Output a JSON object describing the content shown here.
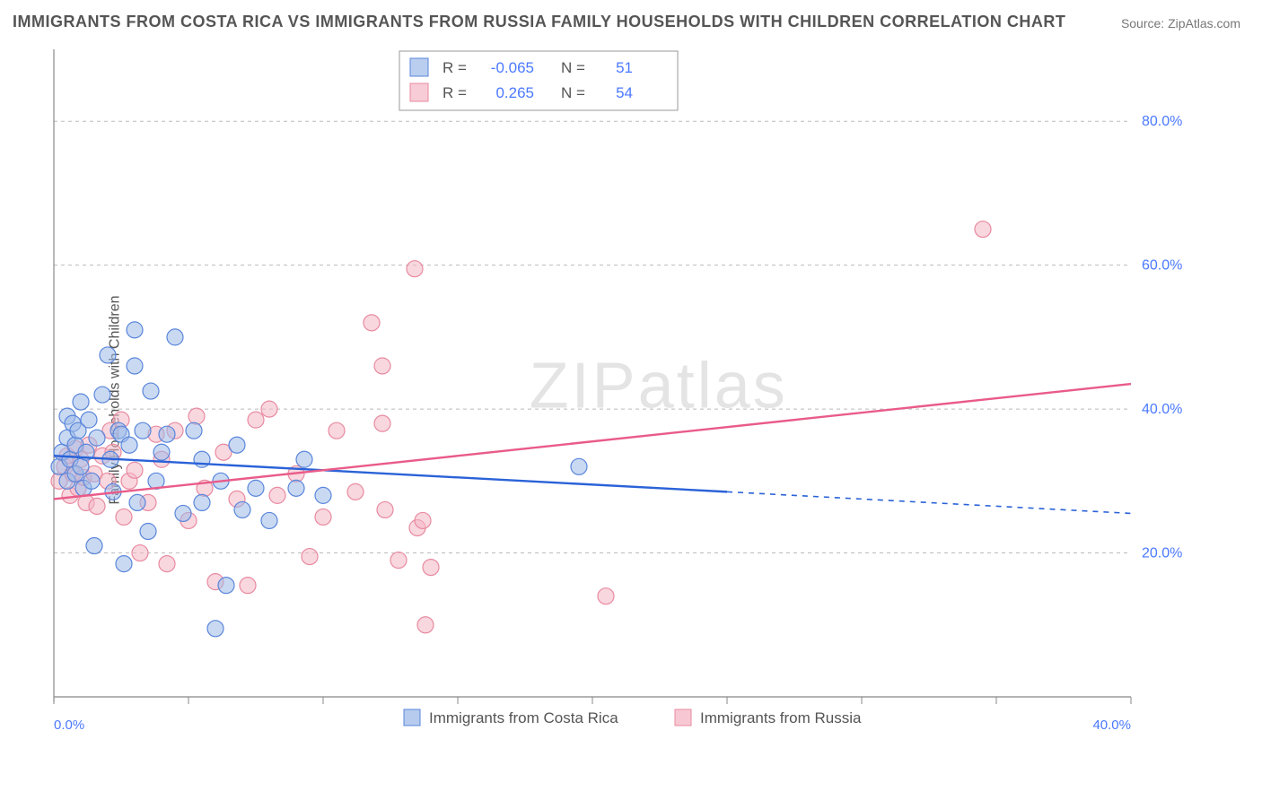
{
  "title": "IMMIGRANTS FROM COSTA RICA VS IMMIGRANTS FROM RUSSIA FAMILY HOUSEHOLDS WITH CHILDREN CORRELATION CHART",
  "source_label": "Source:",
  "source_value": "ZipAtlas.com",
  "ylabel": "Family Households with Children",
  "watermark": "ZIPatlas",
  "colors": {
    "title": "#555555",
    "source": "#777777",
    "tick_label": "#4b79ff",
    "axis": "#888888",
    "grid": "#bbbbbb",
    "series_a_fill": "#9db9e8",
    "series_a_stroke": "#5a86db",
    "series_a_line": "#2a62d8",
    "series_b_fill": "#f4b6c4",
    "series_b_stroke": "#e88aa0",
    "series_b_line": "#e95b89",
    "legend_border": "#999999",
    "legend_bg": "#ffffff"
  },
  "chart": {
    "type": "scatter",
    "xlim": [
      0,
      40
    ],
    "ylim": [
      0,
      90
    ],
    "x_ticks": [
      0,
      5,
      10,
      15,
      20,
      25,
      30,
      35,
      40
    ],
    "x_tick_labels": [
      "0.0%",
      "",
      "",
      "",
      "",
      "",
      "",
      "",
      "40.0%"
    ],
    "y_ticks": [
      20,
      40,
      60,
      80
    ],
    "y_tick_labels": [
      "20.0%",
      "40.0%",
      "60.0%",
      "80.0%"
    ],
    "marker_radius": 9,
    "marker_opacity": 0.55,
    "line_width": 2.4
  },
  "legend_stats": {
    "rows": [
      {
        "swatch": "a",
        "r_label": "R =",
        "r_value": "-0.065",
        "n_label": "N =",
        "n_value": "51"
      },
      {
        "swatch": "b",
        "r_label": "R =",
        "r_value": "0.265",
        "n_label": "N =",
        "n_value": "54"
      }
    ]
  },
  "bottom_legend": {
    "items": [
      {
        "swatch": "a",
        "label": "Immigrants from Costa Rica"
      },
      {
        "swatch": "b",
        "label": "Immigrants from Russia"
      }
    ]
  },
  "series_a": {
    "name": "Immigrants from Costa Rica",
    "regression": {
      "x1": 0,
      "y1": 33.5,
      "x2": 25,
      "y2": 28.5,
      "extrap_x2": 40,
      "extrap_y2": 25.5
    },
    "points": [
      [
        0.2,
        32
      ],
      [
        0.3,
        34
      ],
      [
        0.5,
        39
      ],
      [
        0.5,
        30
      ],
      [
        0.5,
        36
      ],
      [
        0.6,
        33
      ],
      [
        0.7,
        38
      ],
      [
        0.8,
        35
      ],
      [
        0.8,
        31
      ],
      [
        0.9,
        37
      ],
      [
        1.0,
        32
      ],
      [
        1.0,
        41
      ],
      [
        1.1,
        29
      ],
      [
        1.2,
        34
      ],
      [
        1.3,
        38.5
      ],
      [
        1.4,
        30
      ],
      [
        1.5,
        21
      ],
      [
        1.6,
        36
      ],
      [
        1.8,
        42
      ],
      [
        2.0,
        47.5
      ],
      [
        2.1,
        33
      ],
      [
        2.2,
        28.5
      ],
      [
        2.4,
        37
      ],
      [
        2.5,
        36.5
      ],
      [
        2.6,
        18.5
      ],
      [
        2.8,
        35
      ],
      [
        3.0,
        51
      ],
      [
        3.0,
        46
      ],
      [
        3.1,
        27
      ],
      [
        3.3,
        37
      ],
      [
        3.5,
        23
      ],
      [
        3.6,
        42.5
      ],
      [
        3.8,
        30
      ],
      [
        4.0,
        34
      ],
      [
        4.2,
        36.5
      ],
      [
        4.5,
        50
      ],
      [
        4.8,
        25.5
      ],
      [
        5.2,
        37
      ],
      [
        5.5,
        27
      ],
      [
        5.5,
        33
      ],
      [
        6.0,
        9.5
      ],
      [
        6.2,
        30
      ],
      [
        6.4,
        15.5
      ],
      [
        6.8,
        35
      ],
      [
        7.0,
        26
      ],
      [
        7.5,
        29
      ],
      [
        8.0,
        24.5
      ],
      [
        9.0,
        29
      ],
      [
        9.3,
        33
      ],
      [
        10.0,
        28
      ],
      [
        19.5,
        32
      ]
    ]
  },
  "series_b": {
    "name": "Immigrants from Russia",
    "regression": {
      "x1": 0,
      "y1": 27.5,
      "x2": 40,
      "y2": 43.5
    },
    "points": [
      [
        0.2,
        30
      ],
      [
        0.4,
        32
      ],
      [
        0.5,
        33.5
      ],
      [
        0.6,
        28
      ],
      [
        0.7,
        31
      ],
      [
        0.8,
        34.5
      ],
      [
        0.9,
        29
      ],
      [
        1.0,
        33
      ],
      [
        1.1,
        30.5
      ],
      [
        1.2,
        27
      ],
      [
        1.3,
        35
      ],
      [
        1.5,
        31
      ],
      [
        1.6,
        26.5
      ],
      [
        1.8,
        33.5
      ],
      [
        2.0,
        30
      ],
      [
        2.1,
        37
      ],
      [
        2.2,
        34
      ],
      [
        2.5,
        38.5
      ],
      [
        2.6,
        25
      ],
      [
        2.8,
        30
      ],
      [
        3.0,
        31.5
      ],
      [
        3.2,
        20
      ],
      [
        3.5,
        27
      ],
      [
        3.8,
        36.5
      ],
      [
        4.0,
        33
      ],
      [
        4.2,
        18.5
      ],
      [
        4.5,
        37
      ],
      [
        5.0,
        24.5
      ],
      [
        5.3,
        39
      ],
      [
        5.6,
        29
      ],
      [
        6.0,
        16
      ],
      [
        6.3,
        34
      ],
      [
        6.8,
        27.5
      ],
      [
        7.2,
        15.5
      ],
      [
        7.5,
        38.5
      ],
      [
        8.0,
        40
      ],
      [
        8.3,
        28
      ],
      [
        9.0,
        31
      ],
      [
        9.5,
        19.5
      ],
      [
        10.0,
        25
      ],
      [
        10.5,
        37
      ],
      [
        11.2,
        28.5
      ],
      [
        11.8,
        52
      ],
      [
        12.2,
        38
      ],
      [
        12.2,
        46
      ],
      [
        12.3,
        26
      ],
      [
        12.8,
        19
      ],
      [
        13.4,
        59.5
      ],
      [
        13.5,
        23.5
      ],
      [
        13.7,
        24.5
      ],
      [
        13.8,
        10
      ],
      [
        14.0,
        18
      ],
      [
        20.5,
        14
      ],
      [
        34.5,
        65
      ]
    ]
  }
}
